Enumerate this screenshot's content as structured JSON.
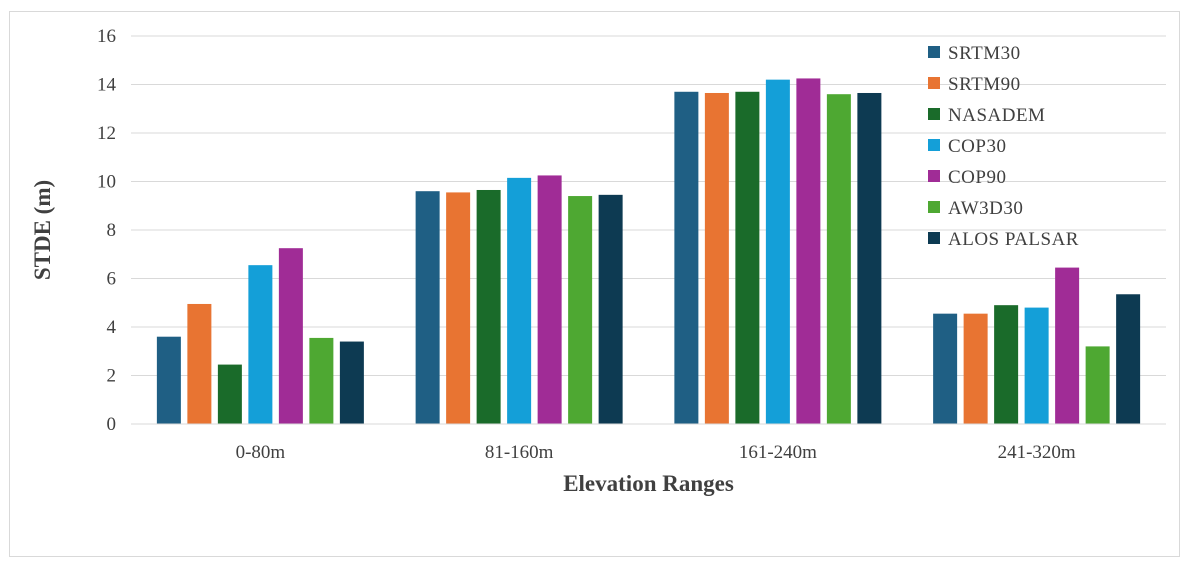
{
  "chart_data": {
    "type": "bar",
    "title": "",
    "xlabel": "Elevation Ranges",
    "ylabel": "STDE (m)",
    "ylim": [
      0,
      16
    ],
    "yticks": [
      0,
      2,
      4,
      6,
      8,
      10,
      12,
      14,
      16
    ],
    "grid": true,
    "legend_position": "top-right",
    "categories": [
      "0-80m",
      "81-160m",
      "161-240m",
      "241-320m"
    ],
    "series": [
      {
        "name": "SRTM30",
        "color": "#1f5f84",
        "values": [
          3.6,
          9.6,
          13.7,
          4.55
        ]
      },
      {
        "name": "SRTM90",
        "color": "#e87432",
        "values": [
          4.95,
          9.55,
          13.65,
          4.55
        ]
      },
      {
        "name": "NASADEM",
        "color": "#1a6b2a",
        "values": [
          2.45,
          9.65,
          13.7,
          4.9
        ]
      },
      {
        "name": "COP30",
        "color": "#149fd8",
        "values": [
          6.55,
          10.15,
          14.2,
          4.8
        ]
      },
      {
        "name": "COP90",
        "color": "#a02c96",
        "values": [
          7.25,
          10.25,
          14.25,
          6.45
        ]
      },
      {
        "name": "AW3D30",
        "color": "#4ea832",
        "values": [
          3.55,
          9.4,
          13.6,
          3.2
        ]
      },
      {
        "name": "ALOS PALSAR",
        "color": "#0d3a52",
        "values": [
          3.4,
          9.45,
          13.65,
          5.35
        ]
      }
    ]
  }
}
